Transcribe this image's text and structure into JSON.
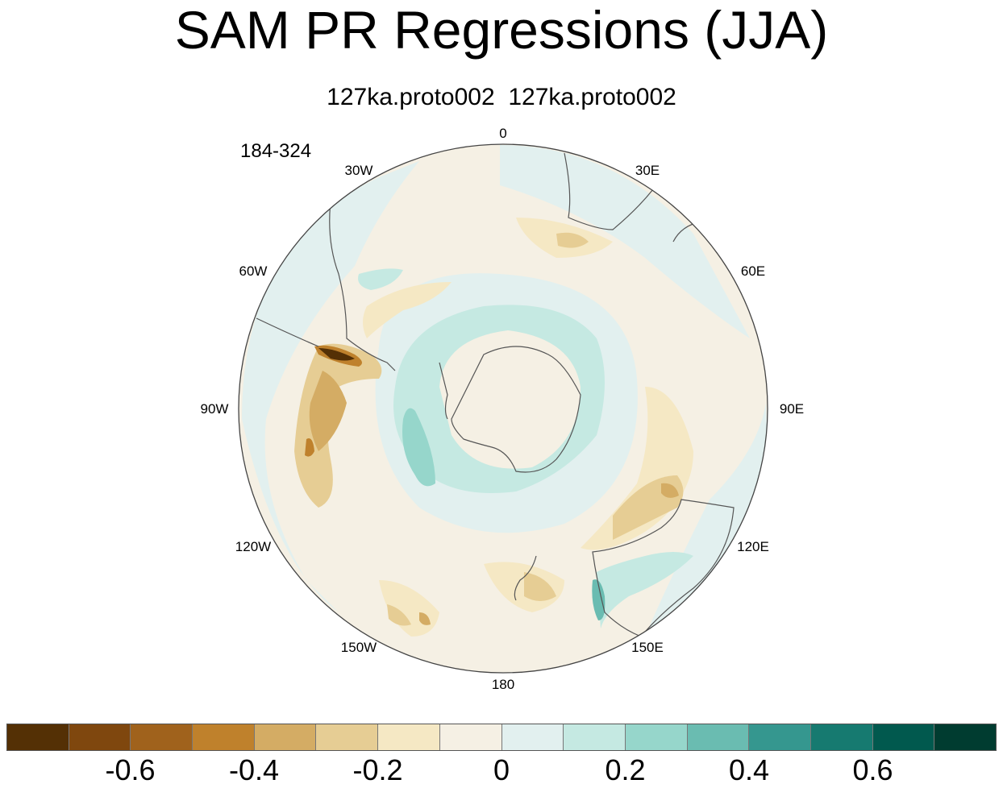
{
  "title": "SAM PR Regressions (JJA)",
  "subtitle": "127ka.proto002  127ka.proto002",
  "years": "184-324",
  "longitude_labels": [
    {
      "text": "0",
      "lon": 0
    },
    {
      "text": "30E",
      "lon": 30
    },
    {
      "text": "60E",
      "lon": 60
    },
    {
      "text": "90E",
      "lon": 90
    },
    {
      "text": "120E",
      "lon": 120
    },
    {
      "text": "150E",
      "lon": 150
    },
    {
      "text": "180",
      "lon": 180
    },
    {
      "text": "150W",
      "lon": -150
    },
    {
      "text": "120W",
      "lon": -120
    },
    {
      "text": "90W",
      "lon": -90
    },
    {
      "text": "60W",
      "lon": -60
    },
    {
      "text": "30W",
      "lon": -30
    }
  ],
  "colorbar": {
    "colors": [
      "#543005",
      "#7f470e",
      "#a0621c",
      "#bf812c",
      "#d4ac64",
      "#e6cd94",
      "#f5e8c4",
      "#f5f0e4",
      "#e2f0ef",
      "#c5e9e2",
      "#96d6cb",
      "#6abcb1",
      "#35978f",
      "#167a70",
      "#01594e",
      "#003c30"
    ],
    "tick_labels": [
      {
        "text": "-0.6",
        "boundary": 2
      },
      {
        "text": "-0.4",
        "boundary": 4
      },
      {
        "text": "-0.2",
        "boundary": 6
      },
      {
        "text": "0",
        "boundary": 8
      },
      {
        "text": "0.2",
        "boundary": 10
      },
      {
        "text": "0.4",
        "boundary": 12
      },
      {
        "text": "0.6",
        "boundary": 14
      }
    ]
  },
  "colors": {
    "background_field": "#f5f0e4",
    "land_outline": "#555555",
    "map_border": "#444444"
  }
}
